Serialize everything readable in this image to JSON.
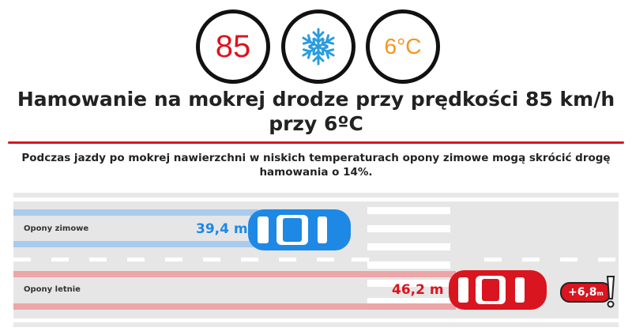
{
  "badges": {
    "speed": "85",
    "weather_icon": "snowflake-icon",
    "temperature": "6°C"
  },
  "title": "Hamowanie na mokrej drodze przy prędkości 85 km/h przy 6ºC",
  "subtitle": "Podczas jazdy po mokrej nawierzchni w niskich temperaturach opony zimowe mogą skrócić drogę hamowania o 14%.",
  "lanes": [
    {
      "label": "Opony zimowe",
      "distance": "39,4 m",
      "color": "#1e88e5"
    },
    {
      "label": "Opony letnie",
      "distance": "46,2 m",
      "color": "#d9151f"
    }
  ],
  "difference": {
    "value": "+6,8",
    "unit": "m"
  },
  "colors": {
    "speed": "#d9151f",
    "snow": "#2a9de0",
    "temperature": "#f7941d"
  }
}
